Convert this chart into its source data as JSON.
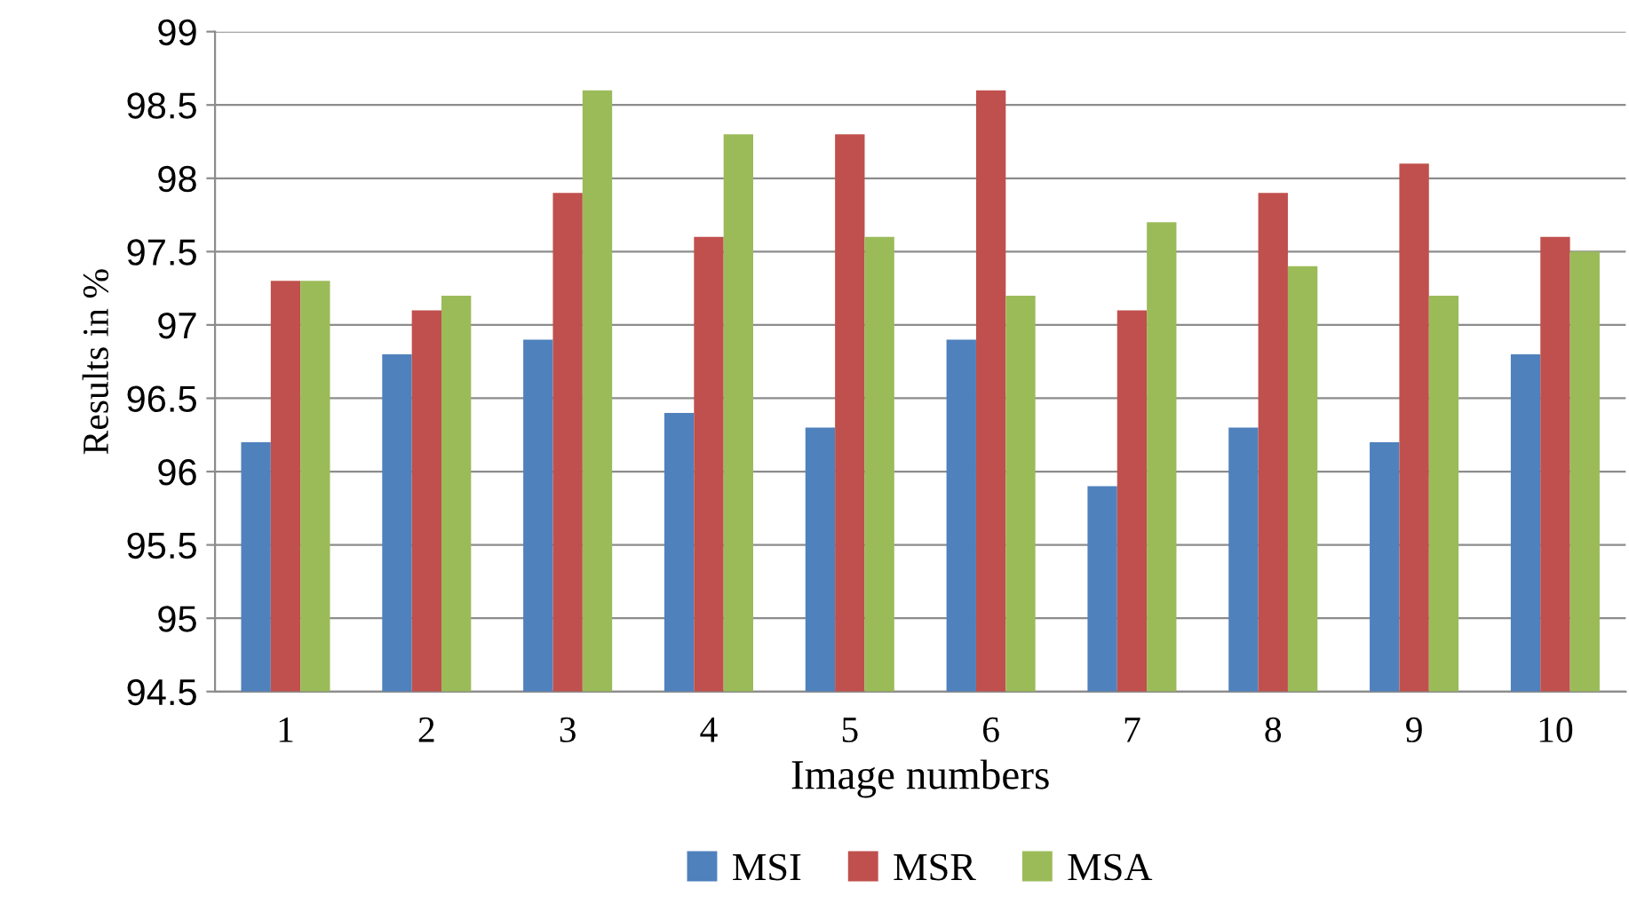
{
  "chart_data": {
    "type": "bar",
    "xlabel": "Image numbers",
    "ylabel": "Results in %",
    "categories": [
      "1",
      "2",
      "3",
      "4",
      "5",
      "6",
      "7",
      "8",
      "9",
      "10"
    ],
    "series": [
      {
        "name": "MSI",
        "color": "#4f81bd",
        "values": [
          96.2,
          96.8,
          96.9,
          96.4,
          96.3,
          96.9,
          95.9,
          96.3,
          96.2,
          96.8
        ]
      },
      {
        "name": "MSR",
        "color": "#c0504d",
        "values": [
          97.3,
          97.1,
          97.9,
          97.6,
          98.3,
          98.6,
          97.1,
          97.9,
          98.1,
          97.6
        ]
      },
      {
        "name": "MSA",
        "color": "#9bbb59",
        "values": [
          97.3,
          97.2,
          98.6,
          98.3,
          97.6,
          97.2,
          97.7,
          97.4,
          97.2,
          97.5
        ]
      }
    ],
    "ylim": [
      94.5,
      99
    ],
    "yticks": [
      94.5,
      95,
      95.5,
      96,
      96.5,
      97,
      97.5,
      98,
      98.5,
      99
    ],
    "grid": "y",
    "legend": "bottom"
  }
}
